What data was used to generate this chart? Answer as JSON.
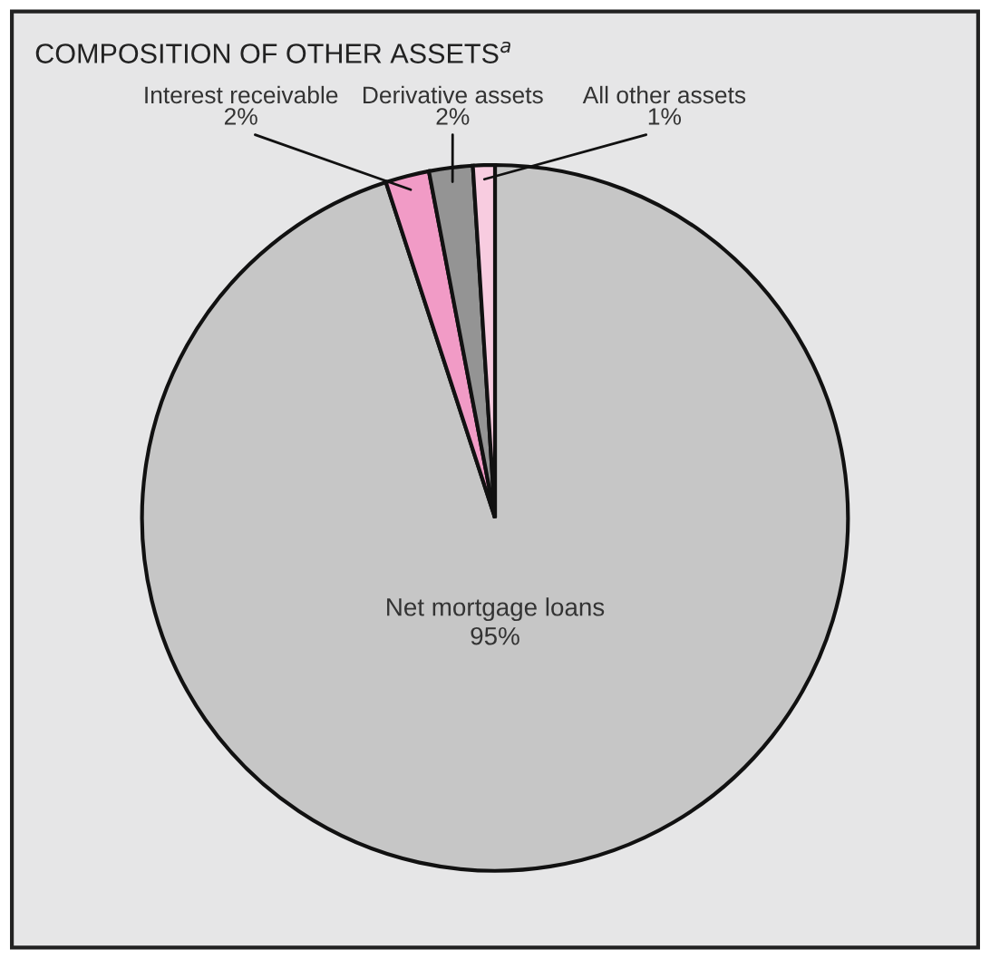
{
  "chart_data": {
    "type": "pie",
    "title": "COMPOSITION OF OTHER ASSETS$^{a}$",
    "categories": [
      "Net mortgage loans",
      "Interest receivable",
      "Derivative assets",
      "All other assets"
    ],
    "values": [
      95,
      2,
      2,
      1
    ],
    "colors": [
      "#c6c6c6",
      "#f19bc6",
      "#949494",
      "#f8cce0"
    ],
    "value_labels": [
      "95%",
      "2%",
      "2%",
      "1%"
    ],
    "legend": false
  }
}
